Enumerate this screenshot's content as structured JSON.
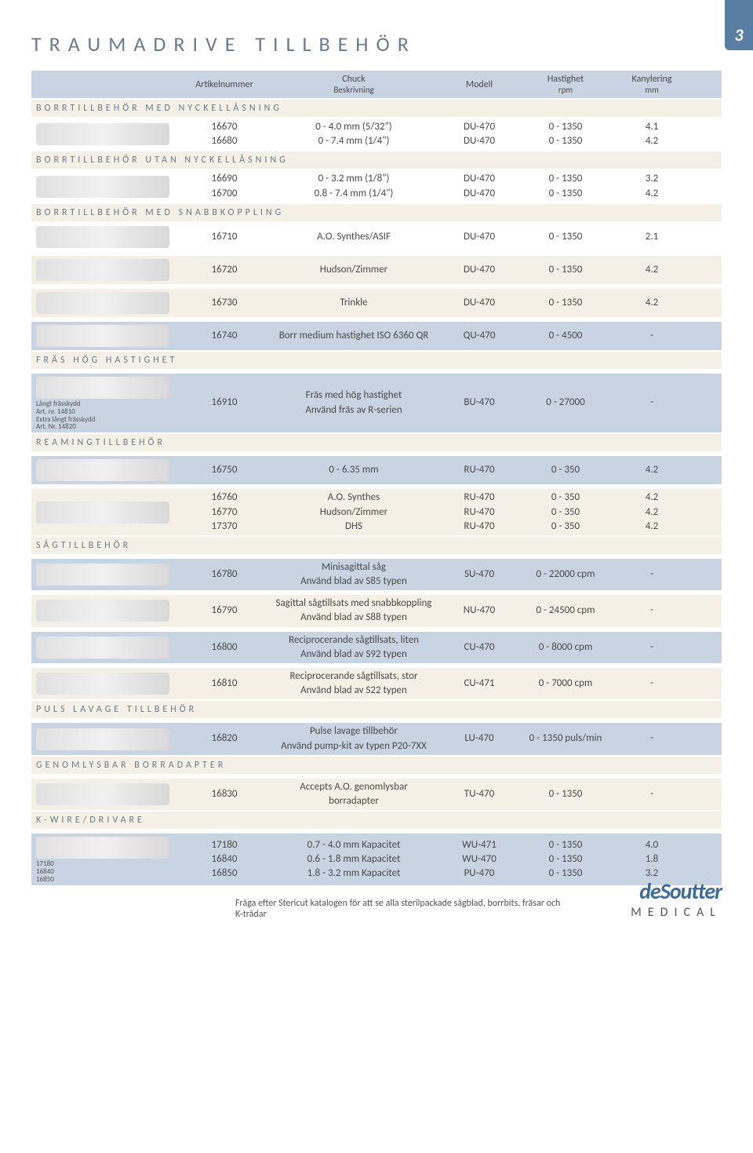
{
  "page_number": "3",
  "title": "TRAUMADRIVE  TILLBEHÖR",
  "columns": {
    "c2": "Artikelnummer",
    "c3": "Chuck",
    "c3_sub": "Beskrivning",
    "c4": "Modell",
    "c5": "Hastighet",
    "c5_sub": "rpm",
    "c6": "Kanylering",
    "c6_sub": "mm"
  },
  "sections": [
    {
      "heading": "BORRTILLBEHÖR MED NYCKELLÅSNING",
      "rows": [
        {
          "art": "16670",
          "desc": "0 - 4.0 mm (5/32\")",
          "model": "DU-470",
          "speed": "0 - 1350",
          "can": "4.1",
          "extra_row": {
            "art": "16680",
            "desc": "0 - 7.4 mm (1/4\")",
            "model": "DU-470",
            "speed": "0 - 1350",
            "can": "4.2"
          }
        }
      ]
    },
    {
      "heading": "BORRTILLBEHÖR UTAN NYCKELLÅSNING",
      "rows": [
        {
          "art": "16690",
          "desc": "0 - 3.2 mm (1/8\")",
          "model": "DU-470",
          "speed": "0 - 1350",
          "can": "3.2",
          "extra_row": {
            "art": "16700",
            "desc": "0.8 - 7.4 mm (1/4\")",
            "model": "DU-470",
            "speed": "0 - 1350",
            "can": "4.2"
          }
        }
      ]
    },
    {
      "heading": "BORRTILLBEHÖR MED SNABBKOPPLING",
      "rows": [
        {
          "art": "16710",
          "desc": "A.O. Synthes/ASIF",
          "model": "DU-470",
          "speed": "0 - 1350",
          "can": "2.1"
        },
        {
          "art": "16720",
          "desc": "Hudson/Zimmer",
          "model": "DU-470",
          "speed": "0 - 1350",
          "can": "4.2",
          "band": "cream"
        },
        {
          "art": "16730",
          "desc": "Trinkle",
          "model": "DU-470",
          "speed": "0 - 1350",
          "can": "4.2",
          "band": "cream"
        },
        {
          "art": "16740",
          "desc": "Borr medium hastighet ISO 6360 QR",
          "model": "QU-470",
          "speed": "0 - 4500",
          "can": "-",
          "band": "blue"
        }
      ]
    },
    {
      "heading": "FRÄS HÖG HASTIGHET",
      "rows": [
        {
          "art": "16910",
          "desc": "Fräs med hög hastighet",
          "desc2": "Använd fräs av R-serien",
          "model": "BU-470",
          "speed": "0 - 27000",
          "can": "-",
          "band": "blue",
          "left_labels": [
            "Långt frässkydd",
            "Art. nr. 14810",
            "Extra långt frässkydd",
            "Art. Nr. 14820"
          ]
        }
      ]
    },
    {
      "heading": "REAMINGTILLBEHÖR",
      "rows": [
        {
          "art": "16750",
          "desc": "0 - 6.35 mm",
          "model": "RU-470",
          "speed": "0 - 350",
          "can": "4.2",
          "band": "blue"
        },
        {
          "art": "16760",
          "desc": "A.O. Synthes",
          "model": "RU-470",
          "speed": "0 - 350",
          "can": "4.2",
          "band": "cream",
          "extra_row": {
            "art": "16770",
            "desc": "Hudson/Zimmer",
            "model": "RU-470",
            "speed": "0 - 350",
            "can": "4.2"
          },
          "extra_row2": {
            "art": "17370",
            "desc": "DHS",
            "model": "RU-470",
            "speed": "0 - 350",
            "can": "4.2"
          }
        }
      ]
    },
    {
      "heading": "SÅGTILLBEHÖR",
      "rows": [
        {
          "art": "16780",
          "desc": "Minisagittal såg",
          "desc2": "Använd blad av S85 typen",
          "model": "SU-470",
          "speed": "0 - 22000 cpm",
          "can": "-",
          "band": "blue"
        },
        {
          "art": "16790",
          "desc": "Sagittal sågtillsats med snabbkoppling",
          "desc2": "Använd blad av S88 typen",
          "model": "NU-470",
          "speed": "0 - 24500 cpm",
          "can": "-",
          "band": "cream"
        },
        {
          "art": "16800",
          "desc": "Reciprocerande sågtillsats, liten",
          "desc2": "Använd blad av S92 typen",
          "model": "CU-470",
          "speed": "0 - 8000 cpm",
          "can": "-",
          "band": "blue"
        },
        {
          "art": "16810",
          "desc": "Reciprocerande sågtillsats, stor",
          "desc2": "Använd blad av S22 typen",
          "model": "CU-471",
          "speed": "0 - 7000 cpm",
          "can": "-",
          "band": "cream"
        }
      ]
    },
    {
      "heading": "PULS LAVAGE TILLBEHÖR",
      "rows": [
        {
          "art": "16820",
          "desc": "Pulse lavage tillbehör",
          "desc2": "Använd pump-kit av typen P20-7XX",
          "model": "LU-470",
          "speed": "0 - 1350 puls/min",
          "can": "-",
          "band": "blue"
        }
      ]
    },
    {
      "heading": "GENOMLYSBAR BORRADAPTER",
      "rows": [
        {
          "art": "16830",
          "desc": "Accepts A.O. genomlysbar",
          "desc2": "borradapter",
          "model": "TU-470",
          "speed": "0 - 1350",
          "can": "-",
          "band": "cream"
        }
      ]
    },
    {
      "heading": "K-WIRE/DRIVARE",
      "rows": [
        {
          "art": "17180",
          "desc": "0.7 - 4.0 mm Kapacitet",
          "model": "WU-471",
          "speed": "0 - 1350",
          "can": "4.0",
          "band": "blue",
          "extra_row": {
            "art": "16840",
            "desc": "0.6 - 1.8 mm Kapacitet",
            "model": "WU-470",
            "speed": "0 - 1350",
            "can": "1.8"
          },
          "extra_row2": {
            "art": "16850",
            "desc": "1.8 - 3.2 mm Kapacitet",
            "model": "PU-470",
            "speed": "0 - 1350",
            "can": "3.2"
          },
          "left_labels": [
            "17180",
            "16840",
            "16850"
          ]
        }
      ]
    }
  ],
  "footer_note": "Fråga efter Stericut katalogen för att se alla sterilpackade sågblad, borrbits, fräsar och K-trådar",
  "brand_top": "deSoutter",
  "brand_bottom": "MEDICAL"
}
